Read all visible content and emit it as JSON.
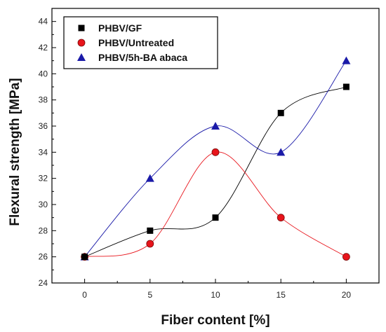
{
  "chart_data": {
    "type": "scatter",
    "xlabel": "Fiber content [%]",
    "ylabel": "Flexural strength [MPa]",
    "xlim": [
      -2.5,
      22.5
    ],
    "ylim": [
      24,
      45
    ],
    "x_ticks": [
      0,
      5,
      10,
      15,
      20
    ],
    "y_ticks": [
      24,
      26,
      28,
      30,
      32,
      34,
      36,
      38,
      40,
      42,
      44
    ],
    "grid": false,
    "legend_position": "top-left",
    "x": [
      0,
      5,
      10,
      15,
      20
    ],
    "series": [
      {
        "name": "PHBV/GF",
        "marker": "square",
        "color": "#000000",
        "line_color": "#000000",
        "values": [
          26,
          28,
          29,
          37,
          39
        ]
      },
      {
        "name": "PHBV/Untreated",
        "marker": "circle",
        "color": "#e8141b",
        "line_color": "#e8141b",
        "values": [
          26,
          27,
          34,
          29,
          26
        ]
      },
      {
        "name": "PHBV/5h-BA abaca",
        "marker": "triangle",
        "color": "#1a1aa8",
        "line_color": "#1a1aa8",
        "values": [
          26,
          32,
          36,
          34,
          41
        ]
      }
    ]
  }
}
